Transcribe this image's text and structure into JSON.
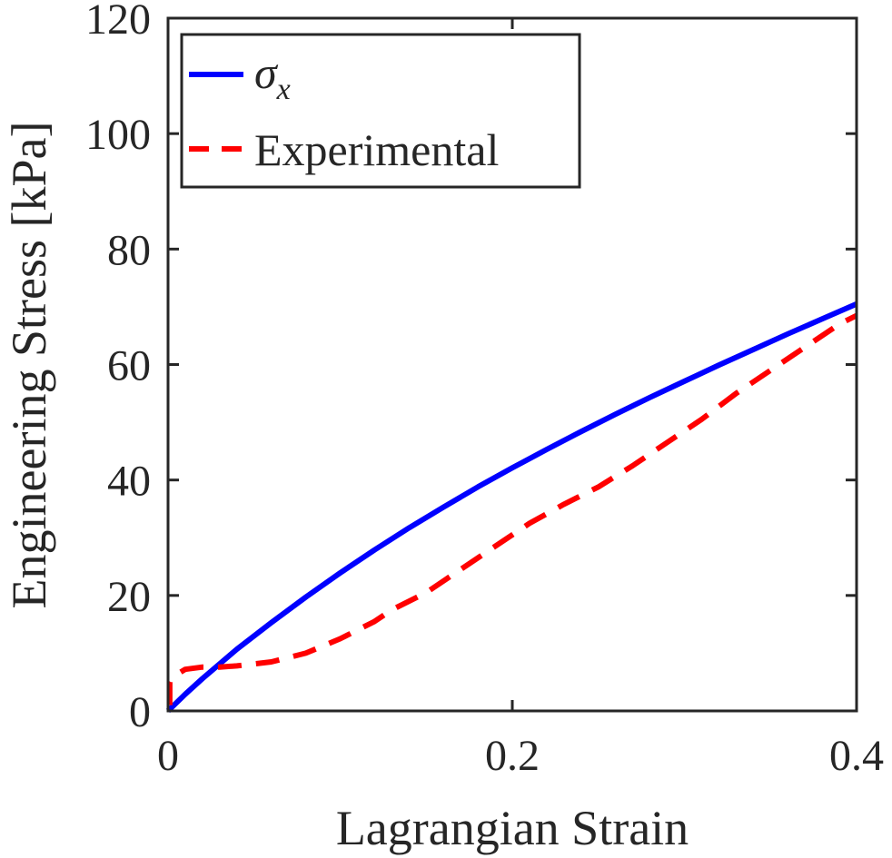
{
  "chart_data": {
    "type": "line",
    "title": "",
    "xlabel": "Lagrangian Strain",
    "ylabel": "Engineering Stress [kPa]",
    "xlim": [
      0,
      0.4
    ],
    "ylim": [
      0,
      120
    ],
    "xticks": [
      0,
      0.2,
      0.4
    ],
    "xtick_labels": [
      "0",
      "0.2",
      "0.4"
    ],
    "yticks": [
      0,
      20,
      40,
      60,
      80,
      100,
      120
    ],
    "ytick_labels": [
      "0",
      "20",
      "40",
      "60",
      "80",
      "100",
      "120"
    ],
    "grid": false,
    "legend_position": "top-left",
    "series": [
      {
        "name": "σ_x",
        "legend_symbol": "σ",
        "legend_subscript": "x",
        "color": "#0000ff",
        "style": "solid",
        "x": [
          0,
          0.01,
          0.02,
          0.04,
          0.06,
          0.08,
          0.1,
          0.12,
          0.14,
          0.16,
          0.18,
          0.2,
          0.22,
          0.24,
          0.26,
          0.28,
          0.3,
          0.32,
          0.34,
          0.36,
          0.38,
          0.4
        ],
        "y": [
          0,
          2.9,
          5.6,
          10.7,
          15.3,
          19.7,
          23.9,
          27.9,
          31.7,
          35.3,
          38.8,
          42.1,
          45.3,
          48.4,
          51.4,
          54.3,
          57.1,
          59.9,
          62.6,
          65.3,
          67.9,
          70.5
        ]
      },
      {
        "name": "Experimental",
        "legend_symbol": "",
        "legend_subscript": "",
        "color": "#ff0000",
        "style": "dashed",
        "x": [
          0.001,
          0.001,
          0.002,
          0.005,
          0.01,
          0.02,
          0.03,
          0.04,
          0.06,
          0.08,
          0.1,
          0.12,
          0.13,
          0.15,
          0.17,
          0.19,
          0.21,
          0.23,
          0.25,
          0.27,
          0.29,
          0.31,
          0.33,
          0.35,
          0.37,
          0.39,
          0.4
        ],
        "y": [
          1,
          5,
          5.5,
          6.3,
          7.2,
          7.6,
          7.6,
          7.8,
          8.5,
          10.0,
          12.5,
          15.5,
          17.5,
          20.5,
          24.5,
          28.5,
          32.5,
          35.8,
          38.8,
          42.5,
          46.5,
          50.5,
          55.0,
          59.0,
          63.0,
          67.0,
          68.5
        ]
      }
    ]
  }
}
